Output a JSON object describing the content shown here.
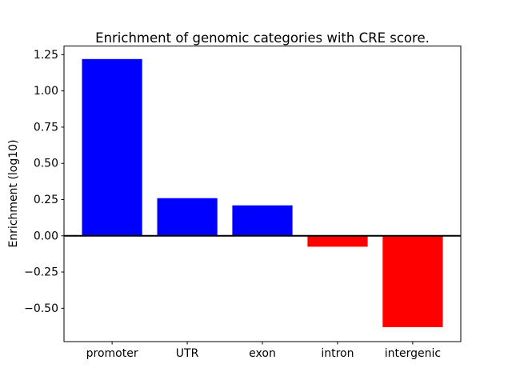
{
  "chart_data": {
    "type": "bar",
    "title": "Enrichment of genomic categories with CRE score.",
    "xlabel": "",
    "ylabel": "Enrichment (log10)",
    "categories": [
      "promoter",
      "UTR",
      "exon",
      "intron",
      "intergenic"
    ],
    "values": [
      1.22,
      0.26,
      0.21,
      -0.075,
      -0.63
    ],
    "bar_colors": [
      "#0000ff",
      "#0000ff",
      "#0000ff",
      "#ff0000",
      "#ff0000"
    ],
    "positive_color": "#0000ff",
    "negative_color": "#ff0000",
    "y_ticks": [
      -0.5,
      -0.25,
      0.0,
      0.25,
      0.5,
      0.75,
      1.0,
      1.25
    ],
    "ylim": [
      -0.73,
      1.31
    ],
    "bar_width_fraction": 0.8,
    "zero_line": true,
    "zero_line_color": "#000000",
    "grid": false,
    "legend": null,
    "background_color": "#ffffff",
    "axis_color": "#000000"
  }
}
